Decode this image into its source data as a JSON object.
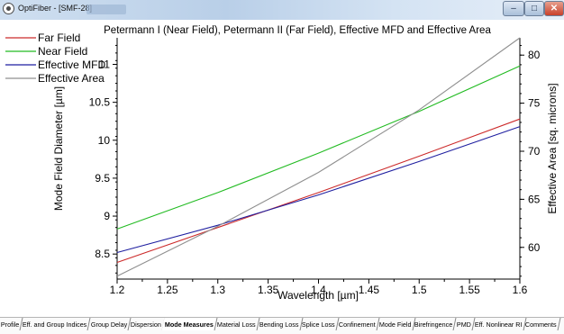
{
  "window": {
    "title": "OptiFiber - [SMF-28]",
    "min_glyph": "–",
    "max_glyph": "□",
    "close_glyph": "✕"
  },
  "tabs": [
    {
      "label": "Profile",
      "active": false
    },
    {
      "label": "Eff. and Group Indices",
      "active": false
    },
    {
      "label": "Group Delay",
      "active": false
    },
    {
      "label": "Dispersion",
      "active": false
    },
    {
      "label": "Mode Measures",
      "active": true
    },
    {
      "label": "Material Loss",
      "active": false
    },
    {
      "label": "Bending Loss",
      "active": false
    },
    {
      "label": "Splice Loss",
      "active": false
    },
    {
      "label": "Confinement",
      "active": false
    },
    {
      "label": "Mode Field",
      "active": false
    },
    {
      "label": "Birefringence",
      "active": false
    },
    {
      "label": "PMD",
      "active": false
    },
    {
      "label": "Eff. Nonlinear RI",
      "active": false
    },
    {
      "label": "Comments",
      "active": false
    }
  ],
  "chart_data": {
    "type": "line",
    "title": "Petermann I (Near Field), Petermann II (Far Field), Effective MFD and Effective Area",
    "xlabel": "Wavelength [µm]",
    "ylabel": "Mode Field Diameter [µm]",
    "y2label": "Effective Area [sq. microns]",
    "xlim": [
      1.2,
      1.6
    ],
    "ylim": [
      8.17,
      11.35
    ],
    "y2lim": [
      56.7,
      81.8
    ],
    "xticks": [
      "1.2",
      "1.25",
      "1.3",
      "1.35",
      "1.4",
      "1.45",
      "1.5",
      "1.55",
      "1.6"
    ],
    "yticks": [
      "8.5",
      "9",
      "9.5",
      "10",
      "10.5",
      "11"
    ],
    "y2ticks": [
      "60",
      "65",
      "70",
      "75",
      "80"
    ],
    "grid": false,
    "legend": "top-left",
    "series": [
      {
        "name": "Far Field",
        "color": "#cc2a2a",
        "axis": "left",
        "x": [
          1.2,
          1.3,
          1.4,
          1.5,
          1.6
        ],
        "y": [
          8.39,
          8.85,
          9.31,
          9.79,
          10.28
        ]
      },
      {
        "name": "Near Field",
        "color": "#22bb22",
        "axis": "left",
        "x": [
          1.2,
          1.3,
          1.4,
          1.5,
          1.6
        ],
        "y": [
          8.83,
          9.31,
          9.83,
          10.38,
          10.98
        ]
      },
      {
        "name": "Effective MFD",
        "color": "#1f1fa0",
        "axis": "left",
        "x": [
          1.2,
          1.3,
          1.4,
          1.5,
          1.6
        ],
        "y": [
          8.52,
          8.88,
          9.28,
          9.72,
          10.18
        ]
      },
      {
        "name": "Effective Area",
        "color": "#8f8f8f",
        "axis": "right",
        "x": [
          1.2,
          1.3,
          1.4,
          1.5,
          1.6
        ],
        "y": [
          57.0,
          62.2,
          67.8,
          74.3,
          81.8
        ]
      }
    ]
  }
}
